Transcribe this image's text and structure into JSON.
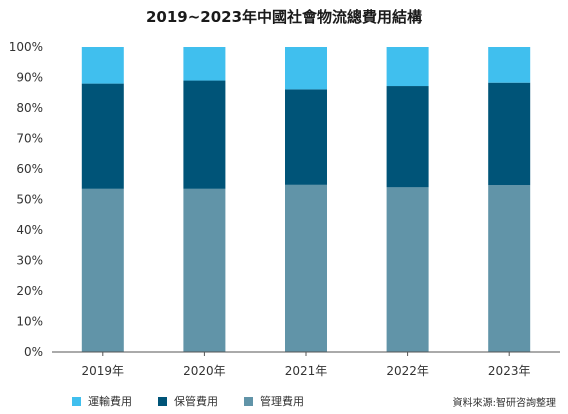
{
  "chart_data": {
    "type": "bar",
    "stacked": true,
    "title": "2019~2023年中國社會物流總費用結構",
    "xlabel": "",
    "ylabel": "",
    "ylim": [
      0,
      100
    ],
    "y_ticks": [
      "0%",
      "10%",
      "20%",
      "30%",
      "40%",
      "50%",
      "60%",
      "70%",
      "80%",
      "90%",
      "100%"
    ],
    "categories": [
      "2019年",
      "2020年",
      "2021年",
      "2022年",
      "2023年"
    ],
    "series": [
      {
        "name": "管理費用",
        "color": "#6194a8",
        "values": [
          53.5,
          53.5,
          54.8,
          54,
          54.7
        ]
      },
      {
        "name": "保管費用",
        "color": "#005478",
        "values": [
          34.5,
          35.5,
          31.3,
          33.2,
          33.6
        ]
      },
      {
        "name": "運輸費用",
        "color": "#40bfee",
        "values": [
          12,
          11,
          13.9,
          12.8,
          11.7
        ]
      }
    ],
    "legend_order": [
      "運輸費用",
      "保管費用",
      "管理費用"
    ],
    "legend_position": "bottom-left",
    "grid": false
  },
  "source": "資料來源:智研咨詢整理"
}
